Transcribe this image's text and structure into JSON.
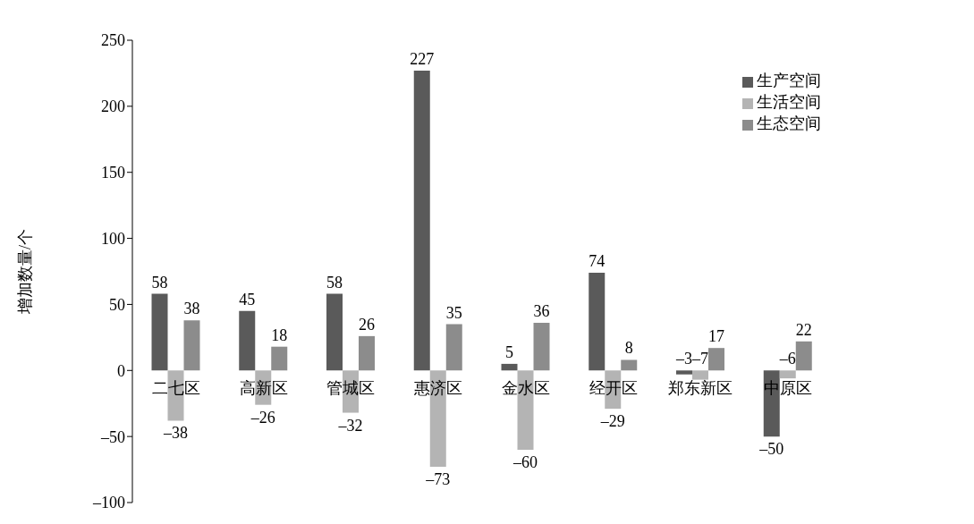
{
  "chart_data": {
    "type": "bar",
    "ylabel": "增加数量/个",
    "categories": [
      "二七区",
      "高新区",
      "管城区",
      "惠济区",
      "金水区",
      "经开区",
      "郑东新区",
      "中原区"
    ],
    "series": [
      {
        "name": "生产空间",
        "color": "#5a5a5a",
        "values": [
          58,
          45,
          58,
          227,
          5,
          74,
          -3,
          -50
        ],
        "value_labels": [
          "58",
          "45",
          "58",
          "227",
          "5",
          "74",
          "–3",
          "–50"
        ]
      },
      {
        "name": "生活空间",
        "color": "#b4b4b4",
        "values": [
          -38,
          -26,
          -32,
          -73,
          -60,
          -29,
          -7,
          -6
        ],
        "value_labels": [
          "–38",
          "–26",
          "–32",
          "–73",
          "–60",
          "–29",
          "–7",
          "–6"
        ]
      },
      {
        "name": "生态空间",
        "color": "#8c8c8c",
        "values": [
          38,
          18,
          26,
          35,
          36,
          8,
          17,
          22
        ],
        "value_labels": [
          "38",
          "18",
          "26",
          "35",
          "36",
          "8",
          "17",
          "22"
        ]
      }
    ],
    "ylim": [
      -100,
      250
    ],
    "yticks": [
      {
        "value": -100,
        "label": "–100"
      },
      {
        "value": -50,
        "label": "–50"
      },
      0,
      50,
      100,
      150,
      200,
      250
    ],
    "grid": false,
    "legend": "top right"
  }
}
